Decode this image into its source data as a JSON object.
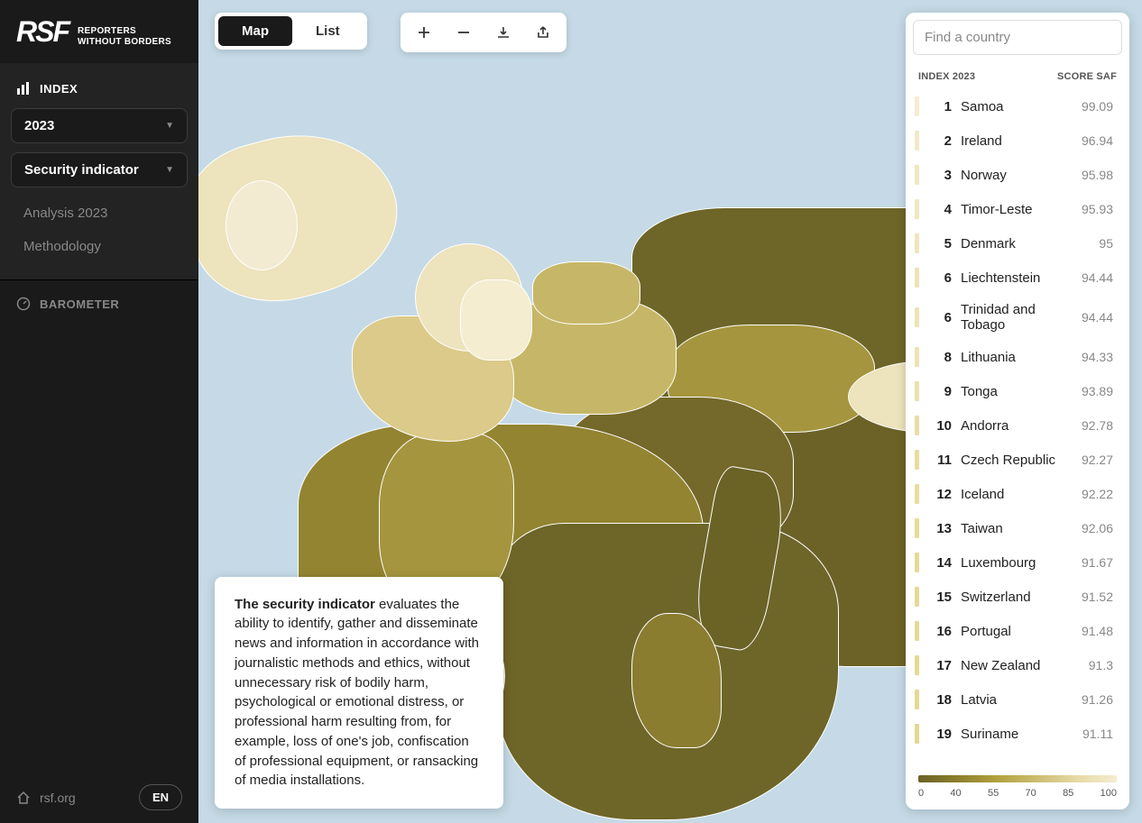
{
  "brand": {
    "mark": "RSF",
    "line1": "REPORTERS",
    "line2": "WITHOUT BORDERS"
  },
  "sidebar": {
    "index_title": "INDEX",
    "year": "2023",
    "indicator": "Security indicator",
    "links": {
      "analysis": "Analysis 2023",
      "methodology": "Methodology"
    },
    "barometer": "BAROMETER",
    "home": "rsf.org",
    "lang": "EN"
  },
  "toolbar": {
    "map": "Map",
    "list": "List"
  },
  "info": {
    "title": "The security indicator",
    "body": " evaluates the ability to identify, gather and disseminate news and information in accordance with journalistic methods and ethics, without unnecessary risk of bodily harm, psychological or emotional distress, or professional harm resulting from, for example, loss of one's job, confiscation of professional equipment, or ransacking of media installations."
  },
  "panel": {
    "search_placeholder": "Find a country",
    "col_index": "INDEX 2023",
    "col_score": "SCORE SAF"
  },
  "rows": [
    {
      "rank": "1",
      "country": "Samoa",
      "score": "99.09",
      "color": "#f4edd0"
    },
    {
      "rank": "2",
      "country": "Ireland",
      "score": "96.94",
      "color": "#f1e9c9"
    },
    {
      "rank": "3",
      "country": "Norway",
      "score": "95.98",
      "color": "#f0e7c3"
    },
    {
      "rank": "4",
      "country": "Timor-Leste",
      "score": "95.93",
      "color": "#f0e7c3"
    },
    {
      "rank": "5",
      "country": "Denmark",
      "score": "95",
      "color": "#efe5bd"
    },
    {
      "rank": "6",
      "country": "Liechtenstein",
      "score": "94.44",
      "color": "#eee3b6"
    },
    {
      "rank": "6",
      "country": "Trinidad and Tobago",
      "score": "94.44",
      "color": "#eee3b6"
    },
    {
      "rank": "8",
      "country": "Lithuania",
      "score": "94.33",
      "color": "#ede2b3"
    },
    {
      "rank": "9",
      "country": "Tonga",
      "score": "93.89",
      "color": "#ece0ae"
    },
    {
      "rank": "10",
      "country": "Andorra",
      "score": "92.78",
      "color": "#eaddA3"
    },
    {
      "rank": "11",
      "country": "Czech Republic",
      "score": "92.27",
      "color": "#e9dc9e"
    },
    {
      "rank": "12",
      "country": "Iceland",
      "score": "92.22",
      "color": "#e9dc9e"
    },
    {
      "rank": "13",
      "country": "Taiwan",
      "score": "92.06",
      "color": "#e8db9a"
    },
    {
      "rank": "14",
      "country": "Luxembourg",
      "score": "91.67",
      "color": "#e7d995"
    },
    {
      "rank": "15",
      "country": "Switzerland",
      "score": "91.52",
      "color": "#e7d995"
    },
    {
      "rank": "16",
      "country": "Portugal",
      "score": "91.48",
      "color": "#e7d995"
    },
    {
      "rank": "17",
      "country": "New Zealand",
      "score": "91.3",
      "color": "#e6d892"
    },
    {
      "rank": "18",
      "country": "Latvia",
      "score": "91.26",
      "color": "#e6d892"
    },
    {
      "rank": "19",
      "country": "Suriname",
      "score": "91.11",
      "color": "#e6d78f"
    }
  ],
  "legend": {
    "ticks": [
      "0",
      "40",
      "55",
      "70",
      "85",
      "100"
    ],
    "colors": [
      "#6b6226",
      "#8c7f2c",
      "#b3a23e",
      "#ccbd72",
      "#e6daa6",
      "#f4edd0"
    ]
  },
  "map": {
    "water_color": "#c5dae6"
  }
}
